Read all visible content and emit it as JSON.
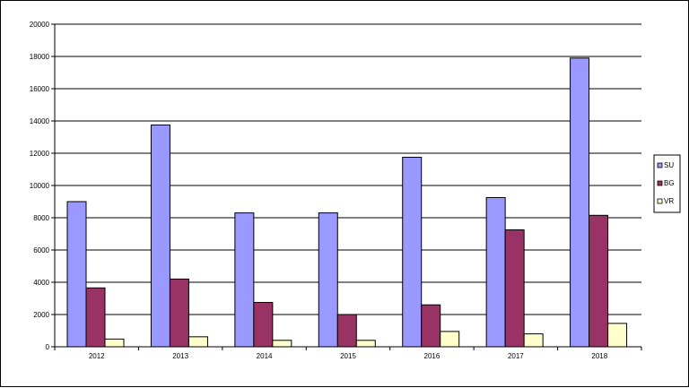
{
  "chart_data": {
    "type": "bar",
    "title": "",
    "xlabel": "",
    "ylabel": "",
    "categories": [
      "2012",
      "2013",
      "2014",
      "2015",
      "2016",
      "2017",
      "2018"
    ],
    "ylim": [
      0,
      20000
    ],
    "yticks": [
      "0",
      "2000",
      "4000",
      "6000",
      "8000",
      "10000",
      "12000",
      "14000",
      "16000",
      "18000",
      "20000"
    ],
    "grid": true,
    "legend_position": "right",
    "series": [
      {
        "name": "SU",
        "color": "#9999FF",
        "values": [
          9000,
          13750,
          8300,
          8300,
          11750,
          9250,
          17900
        ]
      },
      {
        "name": "BG",
        "color": "#993366",
        "values": [
          3650,
          4200,
          2750,
          2000,
          2600,
          7250,
          8150
        ]
      },
      {
        "name": "VR",
        "color": "#FFFFCC",
        "values": [
          480,
          620,
          400,
          400,
          950,
          800,
          1450
        ]
      }
    ]
  }
}
